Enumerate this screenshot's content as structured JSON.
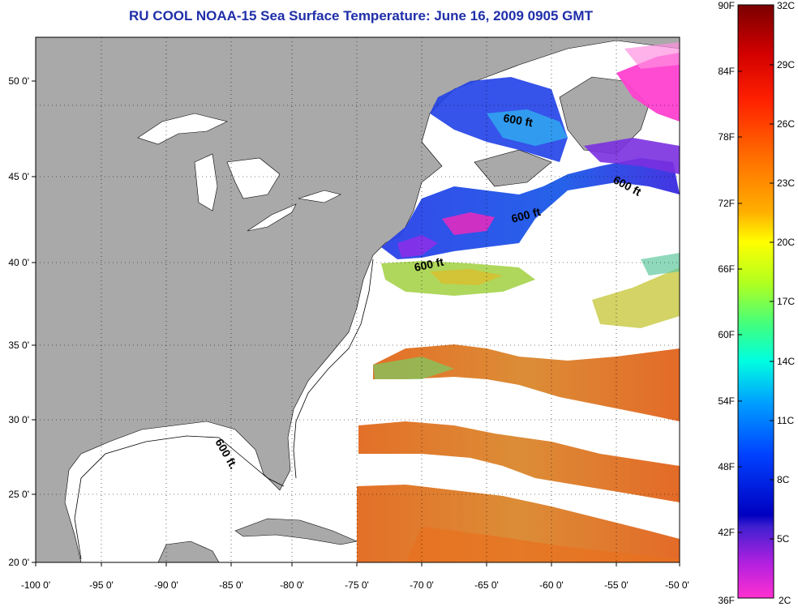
{
  "title": "RU COOL  NOAA-15  Sea Surface Temperature:  June 16, 2009 0905 GMT",
  "map": {
    "x_ticks": [
      "-100 0'",
      "-95 0'",
      "-90 0'",
      "-85 0'",
      "-80 0'",
      "-75 0'",
      "-70 0'",
      "-65 0'",
      "-60 0'",
      "-55 0'",
      "-50 0'"
    ],
    "y_ticks": [
      "50 0'",
      "45 0'",
      "40 0'",
      "35 0'",
      "30 0'",
      "25 0'",
      "20 0'"
    ],
    "contour_labels": [
      "600 ft",
      "600 ft",
      "600 ft",
      "600 ft",
      "600 ft."
    ],
    "land_color": "#a9a9a9",
    "no_data_color": "#ffffff"
  },
  "colorbar": {
    "fahrenheit": [
      "90F",
      "84F",
      "78F",
      "72F",
      "66F",
      "60F",
      "54F",
      "48F",
      "42F",
      "36F"
    ],
    "celsius": [
      "32C",
      "29C",
      "26C",
      "23C",
      "20C",
      "17C",
      "14C",
      "11C",
      "8C",
      "5C",
      "2C"
    ]
  }
}
